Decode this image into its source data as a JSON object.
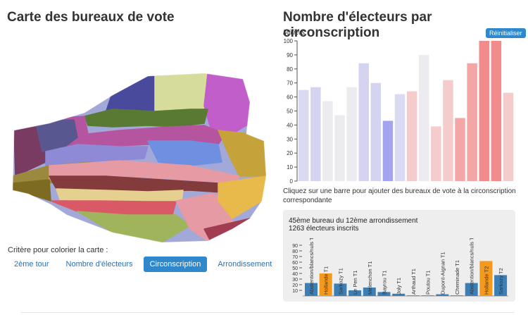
{
  "left": {
    "title": "Carte des bureaux de vote",
    "criteria_label": "Critère pour colorier la carte :",
    "buttons": [
      {
        "label": "2ème tour",
        "active": false
      },
      {
        "label": "Nombre d'électeurs",
        "active": false
      },
      {
        "label": "Circonscription",
        "active": true
      },
      {
        "label": "Arrondissement",
        "active": false
      }
    ],
    "map_colors": [
      "#4a4a9c",
      "#d6dc99",
      "#c25ec9",
      "#587a33",
      "#b6559f",
      "#7a3b63",
      "#59578f",
      "#8e8ad6",
      "#c5a33a",
      "#6f8fe0",
      "#9b8a3d",
      "#a2a8d8",
      "#843b3b",
      "#e6d08f",
      "#d95a66",
      "#a0b45c",
      "#e59aa4",
      "#7d6b22",
      "#e8b94b",
      "#a13c52"
    ]
  },
  "right": {
    "title": "Nombre d'électeurs par circonscription",
    "units": "Milliers",
    "reset_label": "Réinitialiser",
    "hint": "Cliquez sur une barre pour ajouter des bureaux de vote à la circonscription correspondante",
    "panel_line1": "45ème bureau du 12ème arrondissement",
    "panel_line2": "1263 électeurs inscrits"
  },
  "chart_data": [
    {
      "type": "bar",
      "ylim": [
        0,
        100
      ],
      "yticks": [
        0,
        10,
        20,
        30,
        40,
        50,
        60,
        70,
        80,
        90,
        100
      ],
      "values": [
        65,
        67,
        57,
        47,
        67,
        84,
        70,
        43,
        62,
        64,
        90,
        39,
        72,
        45,
        84,
        100,
        100,
        63
      ],
      "colors": [
        "#dadaf2",
        "#d4d4f0",
        "#ebebf0",
        "#ebebf0",
        "#ebebf0",
        "#d4d4f0",
        "#d4d4f0",
        "#a4a4ee",
        "#dadaf2",
        "#f4cccc",
        "#ebebf0",
        "#f4cccc",
        "#f4cccc",
        "#f4a6a6",
        "#f4a6a6",
        "#f28c8c",
        "#f28c8c",
        "#f4cccc"
      ]
    },
    {
      "type": "bar",
      "ylim": [
        0,
        90
      ],
      "yticks": [
        10,
        20,
        30,
        40,
        50,
        60,
        70,
        80,
        90
      ],
      "categories": [
        "Abstention/blancs/nuls T1",
        "Hollande T1",
        "Sarkozy T1",
        "Le Pen T1",
        "Mélenchon T1",
        "Bayrou T1",
        "Joly T1",
        "Arthaud T1",
        "Poutou T1",
        "Dupont-Aignan T1",
        "Cheminade T1",
        "Abstention/blancs/nuls T2",
        "Hollande T2",
        "Sarkozy T2"
      ],
      "values": [
        23,
        40,
        22,
        10,
        15,
        7,
        4,
        1,
        1,
        3,
        1,
        23,
        62,
        37
      ],
      "colors": [
        "#3b7fb6",
        "#f39a1e",
        "#3b7fb6",
        "#3b7fb6",
        "#3b7fb6",
        "#3b7fb6",
        "#3b7fb6",
        "#3b7fb6",
        "#3b7fb6",
        "#3b7fb6",
        "#3b7fb6",
        "#3b7fb6",
        "#f39a1e",
        "#3b7fb6"
      ]
    }
  ]
}
